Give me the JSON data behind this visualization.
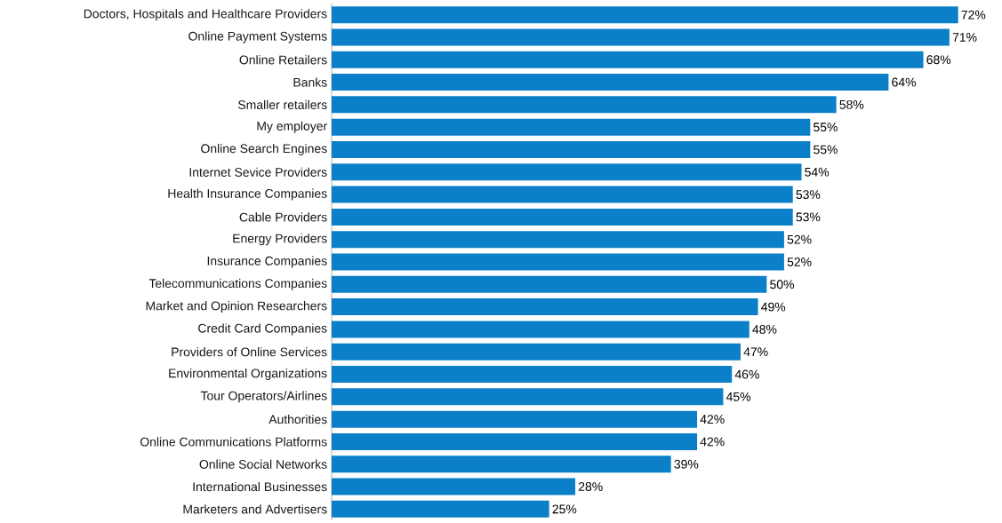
{
  "chart_data": {
    "type": "bar",
    "orientation": "horizontal",
    "categories": [
      "Doctors, Hospitals and Healthcare Providers",
      "Online Payment Systems",
      "Online Retailers",
      "Banks",
      "Smaller retailers",
      "My employer",
      "Online Search Engines",
      "Internet Sevice Providers",
      "Health Insurance Companies",
      "Cable Providers",
      "Energy Providers",
      "Insurance Companies",
      "Telecommunications Companies",
      "Market and Opinion Researchers",
      "Credit Card Companies",
      "Providers of Online Services",
      "Environmental Organizations",
      "Tour Operators/Airlines",
      "Authorities",
      "Online Communications Platforms",
      "Online Social Networks",
      "International Businesses",
      "Marketers and Advertisers"
    ],
    "values": [
      72,
      71,
      68,
      64,
      58,
      55,
      55,
      54,
      53,
      53,
      52,
      52,
      50,
      49,
      48,
      47,
      46,
      45,
      42,
      42,
      39,
      28,
      25
    ],
    "value_labels": [
      "72%",
      "71%",
      "68%",
      "64%",
      "58%",
      "55%",
      "55%",
      "54%",
      "53%",
      "53%",
      "52%",
      "52%",
      "50%",
      "49%",
      "48%",
      "47%",
      "46%",
      "45%",
      "42%",
      "42%",
      "39%",
      "28%",
      "25%"
    ],
    "color": "#0b80c8",
    "tick_labels": "y"
  }
}
